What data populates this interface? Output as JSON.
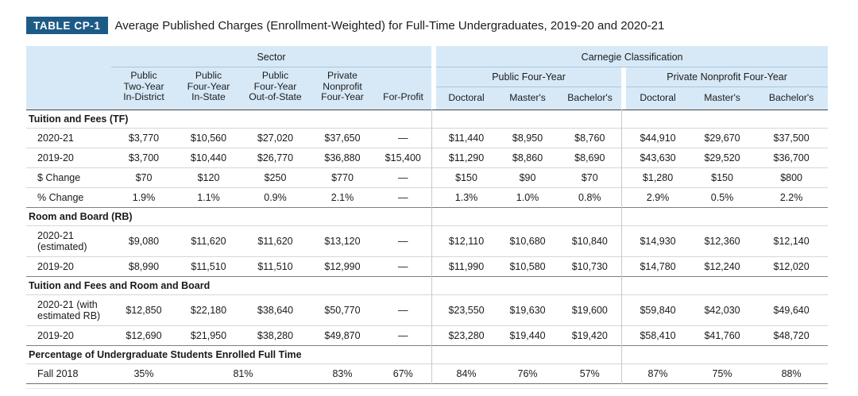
{
  "title": {
    "badge": "TABLE CP-1",
    "text": "Average Published Charges (Enrollment-Weighted) for Full-Time Undergraduates, 2019-20 and 2020-21"
  },
  "colors": {
    "badge_bg": "#1d5b87",
    "header_bg": "#d7e9f7",
    "text": "#1a1a1a"
  },
  "table": {
    "groups": {
      "sector": {
        "label": "Sector",
        "columns": [
          "Public\nTwo-Year\nIn-District",
          "Public\nFour-Year\nIn-State",
          "Public\nFour-Year\nOut-of-State",
          "Private\nNonprofit\nFour-Year",
          "For-Profit"
        ]
      },
      "carnegie": {
        "label": "Carnegie Classification",
        "subgroups": [
          {
            "label": "Public Four-Year",
            "columns": [
              "Doctoral",
              "Master's",
              "Bachelor's"
            ]
          },
          {
            "label": "Private Nonprofit Four-Year",
            "columns": [
              "Doctoral",
              "Master's",
              "Bachelor's"
            ]
          }
        ]
      }
    },
    "sections": [
      {
        "title": "Tuition and Fees (TF)",
        "rows": [
          {
            "label": "2020-21",
            "cells": [
              {
                "v": "$3,770"
              },
              {
                "v": "$10,560"
              },
              {
                "v": "$27,020"
              },
              {
                "v": "$37,650"
              },
              {
                "v": "—"
              },
              {
                "v": "$11,440"
              },
              {
                "v": "$8,950"
              },
              {
                "v": "$8,760"
              },
              {
                "v": "$44,910"
              },
              {
                "v": "$29,670"
              },
              {
                "v": "$37,500"
              }
            ]
          },
          {
            "label": "2019-20",
            "cells": [
              {
                "v": "$3,700"
              },
              {
                "v": "$10,440"
              },
              {
                "v": "$26,770"
              },
              {
                "v": "$36,880"
              },
              {
                "v": "$15,400"
              },
              {
                "v": "$11,290"
              },
              {
                "v": "$8,860"
              },
              {
                "v": "$8,690"
              },
              {
                "v": "$43,630"
              },
              {
                "v": "$29,520"
              },
              {
                "v": "$36,700"
              }
            ]
          },
          {
            "label": "$ Change",
            "cells": [
              {
                "v": "$70"
              },
              {
                "v": "$120"
              },
              {
                "v": "$250"
              },
              {
                "v": "$770"
              },
              {
                "v": "—"
              },
              {
                "v": "$150"
              },
              {
                "v": "$90"
              },
              {
                "v": "$70"
              },
              {
                "v": "$1,280"
              },
              {
                "v": "$150"
              },
              {
                "v": "$800"
              }
            ]
          },
          {
            "label": "% Change",
            "cells": [
              {
                "v": "1.9%"
              },
              {
                "v": "1.1%"
              },
              {
                "v": "0.9%"
              },
              {
                "v": "2.1%"
              },
              {
                "v": "—"
              },
              {
                "v": "1.3%"
              },
              {
                "v": "1.0%"
              },
              {
                "v": "0.8%"
              },
              {
                "v": "2.9%"
              },
              {
                "v": "0.5%"
              },
              {
                "v": "2.2%"
              }
            ]
          }
        ]
      },
      {
        "title": "Room and Board (RB)",
        "rows": [
          {
            "label": "2020-21\n(estimated)",
            "cells": [
              {
                "v": "$9,080"
              },
              {
                "v": "$11,620"
              },
              {
                "v": "$11,620"
              },
              {
                "v": "$13,120"
              },
              {
                "v": "—"
              },
              {
                "v": "$12,110"
              },
              {
                "v": "$10,680"
              },
              {
                "v": "$10,840"
              },
              {
                "v": "$14,930"
              },
              {
                "v": "$12,360"
              },
              {
                "v": "$12,140"
              }
            ]
          },
          {
            "label": "2019-20",
            "cells": [
              {
                "v": "$8,990"
              },
              {
                "v": "$11,510"
              },
              {
                "v": "$11,510"
              },
              {
                "v": "$12,990"
              },
              {
                "v": "—"
              },
              {
                "v": "$11,990"
              },
              {
                "v": "$10,580"
              },
              {
                "v": "$10,730"
              },
              {
                "v": "$14,780"
              },
              {
                "v": "$12,240"
              },
              {
                "v": "$12,020"
              }
            ]
          }
        ]
      },
      {
        "title": "Tuition and Fees and Room and Board",
        "rows": [
          {
            "label": "2020-21 (with\nestimated RB)",
            "cells": [
              {
                "v": "$12,850"
              },
              {
                "v": "$22,180"
              },
              {
                "v": "$38,640"
              },
              {
                "v": "$50,770"
              },
              {
                "v": "—"
              },
              {
                "v": "$23,550"
              },
              {
                "v": "$19,630"
              },
              {
                "v": "$19,600"
              },
              {
                "v": "$59,840"
              },
              {
                "v": "$42,030"
              },
              {
                "v": "$49,640"
              }
            ]
          },
          {
            "label": "2019-20",
            "cells": [
              {
                "v": "$12,690"
              },
              {
                "v": "$21,950"
              },
              {
                "v": "$38,280"
              },
              {
                "v": "$49,870"
              },
              {
                "v": "—"
              },
              {
                "v": "$23,280"
              },
              {
                "v": "$19,440"
              },
              {
                "v": "$19,420"
              },
              {
                "v": "$58,410"
              },
              {
                "v": "$41,760"
              },
              {
                "v": "$48,720"
              }
            ]
          }
        ]
      },
      {
        "title": "Percentage of Undergraduate Students Enrolled Full Time",
        "rows": [
          {
            "label": "Fall 2018",
            "cells": [
              {
                "v": "35%"
              },
              {
                "v": "81%",
                "span": 2
              },
              {
                "v": "83%"
              },
              {
                "v": "67%"
              },
              {
                "v": "84%"
              },
              {
                "v": "76%"
              },
              {
                "v": "57%"
              },
              {
                "v": "87%"
              },
              {
                "v": "75%"
              },
              {
                "v": "88%"
              }
            ]
          }
        ]
      }
    ]
  }
}
